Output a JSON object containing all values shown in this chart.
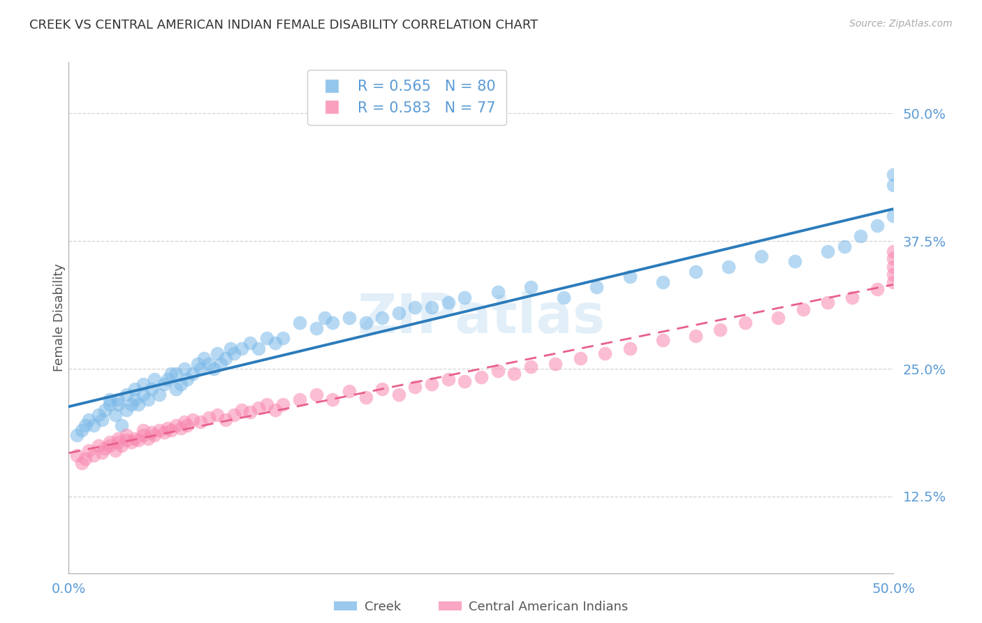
{
  "title": "CREEK VS CENTRAL AMERICAN INDIAN FEMALE DISABILITY CORRELATION CHART",
  "source": "Source: ZipAtlas.com",
  "ylabel": "Female Disability",
  "creek_R": 0.565,
  "creek_N": 80,
  "central_R": 0.583,
  "central_N": 77,
  "xlim": [
    0.0,
    0.5
  ],
  "ylim": [
    0.05,
    0.55
  ],
  "ytick_labels": [
    "12.5%",
    "25.0%",
    "37.5%",
    "50.0%"
  ],
  "ytick_values": [
    0.125,
    0.25,
    0.375,
    0.5
  ],
  "xtick_labels": [
    "0.0%",
    "50.0%"
  ],
  "xtick_values": [
    0.0,
    0.5
  ],
  "creek_color": "#7ab8e8",
  "central_color": "#f888b0",
  "creek_line_color": "#2b7bba",
  "central_line_color": "#e8608a",
  "axis_color": "#5b9bd5",
  "grid_color": "#c8c8c8",
  "creek_x": [
    0.005,
    0.008,
    0.01,
    0.012,
    0.015,
    0.018,
    0.02,
    0.022,
    0.025,
    0.025,
    0.028,
    0.03,
    0.03,
    0.032,
    0.035,
    0.035,
    0.038,
    0.04,
    0.04,
    0.042,
    0.045,
    0.045,
    0.048,
    0.05,
    0.052,
    0.055,
    0.058,
    0.06,
    0.062,
    0.065,
    0.065,
    0.068,
    0.07,
    0.072,
    0.075,
    0.078,
    0.08,
    0.082,
    0.085,
    0.088,
    0.09,
    0.092,
    0.095,
    0.098,
    0.1,
    0.105,
    0.11,
    0.115,
    0.12,
    0.125,
    0.13,
    0.14,
    0.15,
    0.155,
    0.16,
    0.17,
    0.18,
    0.19,
    0.2,
    0.21,
    0.22,
    0.23,
    0.24,
    0.26,
    0.28,
    0.3,
    0.32,
    0.34,
    0.36,
    0.38,
    0.4,
    0.42,
    0.44,
    0.46,
    0.47,
    0.48,
    0.49,
    0.5,
    0.5,
    0.5
  ],
  "creek_y": [
    0.185,
    0.19,
    0.195,
    0.2,
    0.195,
    0.205,
    0.2,
    0.21,
    0.215,
    0.22,
    0.205,
    0.215,
    0.22,
    0.195,
    0.21,
    0.225,
    0.215,
    0.22,
    0.23,
    0.215,
    0.225,
    0.235,
    0.22,
    0.23,
    0.24,
    0.225,
    0.235,
    0.24,
    0.245,
    0.23,
    0.245,
    0.235,
    0.25,
    0.24,
    0.245,
    0.255,
    0.25,
    0.26,
    0.255,
    0.25,
    0.265,
    0.255,
    0.26,
    0.27,
    0.265,
    0.27,
    0.275,
    0.27,
    0.28,
    0.275,
    0.28,
    0.295,
    0.29,
    0.3,
    0.295,
    0.3,
    0.295,
    0.3,
    0.305,
    0.31,
    0.31,
    0.315,
    0.32,
    0.325,
    0.33,
    0.32,
    0.33,
    0.34,
    0.335,
    0.345,
    0.35,
    0.36,
    0.355,
    0.365,
    0.37,
    0.38,
    0.39,
    0.4,
    0.43,
    0.44
  ],
  "central_x": [
    0.005,
    0.008,
    0.01,
    0.012,
    0.015,
    0.018,
    0.02,
    0.022,
    0.025,
    0.025,
    0.028,
    0.03,
    0.03,
    0.032,
    0.035,
    0.035,
    0.038,
    0.04,
    0.042,
    0.045,
    0.045,
    0.048,
    0.05,
    0.052,
    0.055,
    0.058,
    0.06,
    0.062,
    0.065,
    0.068,
    0.07,
    0.072,
    0.075,
    0.08,
    0.085,
    0.09,
    0.095,
    0.1,
    0.105,
    0.11,
    0.115,
    0.12,
    0.125,
    0.13,
    0.14,
    0.15,
    0.16,
    0.17,
    0.18,
    0.19,
    0.2,
    0.21,
    0.22,
    0.23,
    0.24,
    0.25,
    0.26,
    0.27,
    0.28,
    0.295,
    0.31,
    0.325,
    0.34,
    0.36,
    0.38,
    0.395,
    0.41,
    0.43,
    0.445,
    0.46,
    0.475,
    0.49,
    0.5,
    0.5,
    0.5,
    0.5,
    0.5
  ],
  "central_y": [
    0.165,
    0.158,
    0.162,
    0.17,
    0.165,
    0.175,
    0.168,
    0.172,
    0.178,
    0.175,
    0.17,
    0.178,
    0.182,
    0.175,
    0.18,
    0.185,
    0.178,
    0.182,
    0.18,
    0.185,
    0.19,
    0.182,
    0.188,
    0.185,
    0.19,
    0.188,
    0.192,
    0.19,
    0.195,
    0.192,
    0.198,
    0.195,
    0.2,
    0.198,
    0.202,
    0.205,
    0.2,
    0.205,
    0.21,
    0.208,
    0.212,
    0.215,
    0.21,
    0.215,
    0.22,
    0.225,
    0.22,
    0.228,
    0.222,
    0.23,
    0.225,
    0.232,
    0.235,
    0.24,
    0.238,
    0.242,
    0.248,
    0.245,
    0.252,
    0.255,
    0.26,
    0.265,
    0.27,
    0.278,
    0.282,
    0.288,
    0.295,
    0.3,
    0.308,
    0.315,
    0.32,
    0.328,
    0.335,
    0.342,
    0.35,
    0.358,
    0.365
  ]
}
